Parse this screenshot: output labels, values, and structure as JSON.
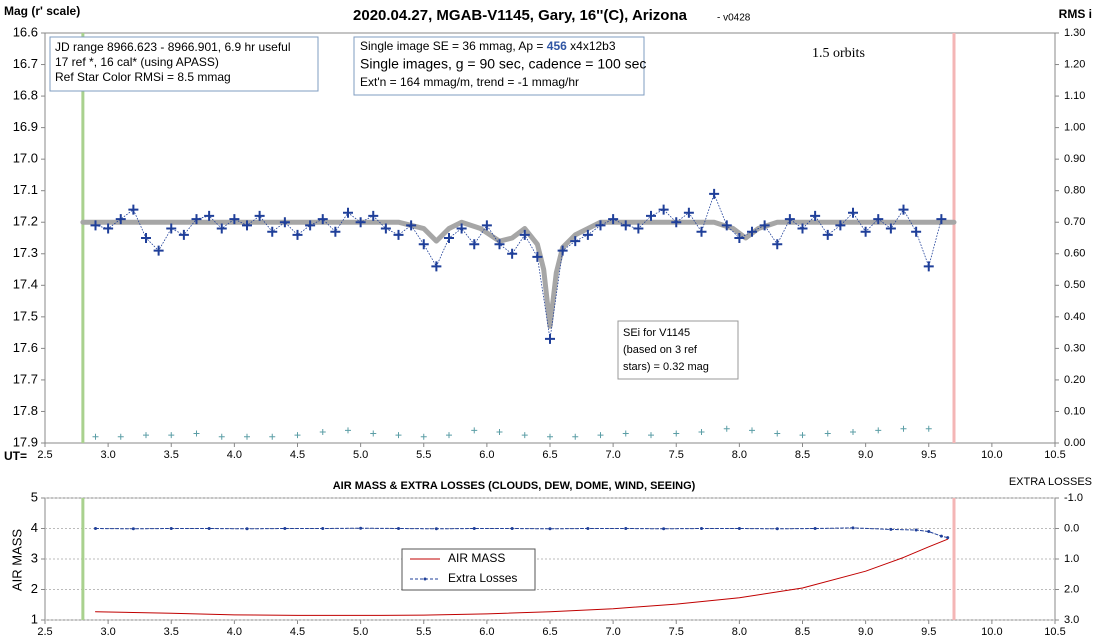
{
  "chart_data": [
    {
      "type": "line",
      "title": "2020.04.27, MGAB-V1145, Gary, 16''(C), Arizona",
      "subtitle": "- v0428",
      "y_label": "Mag (r' scale)",
      "y2_label": "RMS i",
      "x_label": "UT=",
      "xlim": [
        2.5,
        10.5
      ],
      "xticks": [
        2.5,
        {
          "value": 3,
          "label": "3.0"
        },
        3.5,
        {
          "value": 4,
          "label": "4.0"
        },
        4.5,
        {
          "value": 5,
          "label": "5.0"
        },
        5.5,
        {
          "value": 6,
          "label": "6.0"
        },
        6.5,
        {
          "value": 7,
          "label": "7.0"
        },
        7.5,
        {
          "value": 8,
          "label": "8.0"
        },
        8.5,
        {
          "value": 9,
          "label": "9.0"
        },
        9.5,
        {
          "value": 10,
          "label": "10.0"
        },
        10.5
      ],
      "ylim": [
        16.6,
        17.9
      ],
      "y_reversed": true,
      "yticks": [
        16.6,
        16.7,
        16.8,
        16.9,
        {
          "value": 17,
          "label": "17.0"
        },
        17.1,
        17.2,
        17.3,
        17.4,
        17.5,
        17.6,
        17.7,
        17.8,
        17.9
      ],
      "y2lim": [
        0,
        1.3
      ],
      "y2ticks": [
        {
          "value": 0,
          "label": "0.00"
        },
        {
          "value": 0.1,
          "label": "0.10"
        },
        {
          "value": 0.2,
          "label": "0.20"
        },
        {
          "value": 0.3,
          "label": "0.30"
        },
        {
          "value": 0.4,
          "label": "0.40"
        },
        {
          "value": 0.5,
          "label": "0.50"
        },
        {
          "value": 0.6,
          "label": "0.60"
        },
        {
          "value": 0.7,
          "label": "0.70"
        },
        {
          "value": 0.8,
          "label": "0.80"
        },
        {
          "value": 0.9,
          "label": "0.90"
        },
        {
          "value": 1,
          "label": "1.00"
        },
        {
          "value": 1.1,
          "label": "1.10"
        },
        {
          "value": 1.2,
          "label": "1.20"
        },
        {
          "value": 1.3,
          "label": "1.30"
        }
      ],
      "grid": false,
      "vlines": [
        {
          "x": 2.8,
          "color": "#a9d18e"
        },
        {
          "x": 9.7,
          "color": "#f4b6b6"
        }
      ],
      "series": [
        {
          "color": "#a6a6a6",
          "line": "thick",
          "marker": "none",
          "x": [
            2.8,
            5.3,
            5.5,
            5.6,
            5.7,
            5.8,
            5.95,
            6.1,
            6.2,
            6.3,
            6.4,
            6.45,
            6.5,
            6.55,
            6.6,
            6.7,
            6.9,
            7.8,
            7.95,
            8.05,
            8.15,
            8.3,
            9.7
          ],
          "values": [
            17.2,
            17.2,
            17.22,
            17.26,
            17.22,
            17.2,
            17.22,
            17.26,
            17.25,
            17.22,
            17.27,
            17.35,
            17.53,
            17.36,
            17.28,
            17.24,
            17.2,
            17.2,
            17.22,
            17.25,
            17.22,
            17.2,
            17.2
          ]
        },
        {
          "color": "#1f3f99",
          "line": "dotted",
          "marker": "plus",
          "x": [
            2.9,
            3.0,
            3.1,
            3.2,
            3.3,
            3.4,
            3.5,
            3.6,
            3.7,
            3.8,
            3.9,
            4.0,
            4.1,
            4.2,
            4.3,
            4.4,
            4.5,
            4.6,
            4.7,
            4.8,
            4.9,
            5.0,
            5.1,
            5.2,
            5.3,
            5.4,
            5.5,
            5.6,
            5.7,
            5.8,
            5.9,
            6.0,
            6.1,
            6.2,
            6.3,
            6.4,
            6.5,
            6.6,
            6.7,
            6.8,
            6.9,
            7.0,
            7.1,
            7.2,
            7.3,
            7.4,
            7.5,
            7.6,
            7.7,
            7.8,
            7.9,
            8.0,
            8.1,
            8.2,
            8.3,
            8.4,
            8.5,
            8.6,
            8.7,
            8.8,
            8.9,
            9.0,
            9.1,
            9.2,
            9.3,
            9.4,
            9.5,
            9.6
          ],
          "values": [
            17.21,
            17.22,
            17.19,
            17.16,
            17.25,
            17.29,
            17.22,
            17.24,
            17.19,
            17.18,
            17.22,
            17.19,
            17.21,
            17.18,
            17.23,
            17.2,
            17.24,
            17.21,
            17.19,
            17.23,
            17.17,
            17.2,
            17.18,
            17.22,
            17.24,
            17.21,
            17.27,
            17.34,
            17.25,
            17.22,
            17.27,
            17.21,
            17.27,
            17.3,
            17.24,
            17.31,
            17.57,
            17.29,
            17.26,
            17.24,
            17.21,
            17.19,
            17.21,
            17.22,
            17.18,
            17.16,
            17.2,
            17.17,
            17.23,
            17.11,
            17.21,
            17.25,
            17.23,
            17.21,
            17.27,
            17.19,
            17.22,
            17.18,
            17.24,
            17.21,
            17.17,
            17.23,
            17.19,
            17.22,
            17.16,
            17.23,
            17.34,
            17.19
          ]
        },
        {
          "color": "#5b9ea6",
          "line": "none",
          "marker": "plus",
          "axis": "y2",
          "x": [
            2.9,
            3.1,
            3.3,
            3.5,
            3.7,
            3.9,
            4.1,
            4.3,
            4.5,
            4.7,
            4.9,
            5.1,
            5.3,
            5.5,
            5.7,
            5.9,
            6.1,
            6.3,
            6.5,
            6.7,
            6.9,
            7.1,
            7.3,
            7.5,
            7.7,
            7.9,
            8.1,
            8.3,
            8.5,
            8.7,
            8.9,
            9.1,
            9.3,
            9.5
          ],
          "values": [
            0.02,
            0.02,
            0.025,
            0.025,
            0.03,
            0.02,
            0.02,
            0.02,
            0.025,
            0.035,
            0.04,
            0.03,
            0.025,
            0.02,
            0.025,
            0.04,
            0.035,
            0.025,
            0.02,
            0.02,
            0.025,
            0.03,
            0.025,
            0.03,
            0.035,
            0.045,
            0.04,
            0.03,
            0.025,
            0.03,
            0.035,
            0.04,
            0.045,
            0.045
          ]
        }
      ],
      "annotations": {
        "info_box": [
          "JD range 8966.623 - 8966.901, 6.9 hr useful",
          "17 ref *, 16 cal* (using APASS)",
          "Ref Star Color RMSi = 8.5 mmag"
        ],
        "image_box": {
          "line1": [
            "Single image SE = 36 mmag, Ap = ",
            "456",
            " x4x12b3"
          ],
          "line2": "Single images, g = 90 sec, cadence = 100 sec",
          "line3": "Ext'n = 164 mmag/m, trend = -1 mmag/hr"
        },
        "orbits": "1.5 orbits",
        "sei_box": [
          "SEi for V1145",
          "(based on 3 ref",
          "stars) = 0.32 mag"
        ]
      }
    },
    {
      "type": "line",
      "title": "AIR MASS & EXTRA LOSSES (CLOUDS, DEW, DOME, WIND, SEEING)",
      "y_label": "AIR MASS",
      "y2_label": "EXTRA LOSSES",
      "xlim": [
        2.5,
        10.5
      ],
      "xticks": [
        2.5,
        {
          "value": 3,
          "label": "3.0"
        },
        3.5,
        {
          "value": 4,
          "label": "4.0"
        },
        4.5,
        {
          "value": 5,
          "label": "5.0"
        },
        5.5,
        {
          "value": 6,
          "label": "6.0"
        },
        6.5,
        {
          "value": 7,
          "label": "7.0"
        },
        7.5,
        {
          "value": 8,
          "label": "8.0"
        },
        8.5,
        {
          "value": 9,
          "label": "9.0"
        },
        9.5,
        {
          "value": 10,
          "label": "10.0"
        },
        10.5
      ],
      "ylim": [
        1,
        5
      ],
      "yticks": [
        1,
        2,
        3,
        4,
        5
      ],
      "y2lim": [
        -1,
        3
      ],
      "y2_reversed": true,
      "y2ticks": [
        {
          "value": -1,
          "label": "-1.0"
        },
        {
          "value": 0,
          "label": "0.0"
        },
        {
          "value": 1,
          "label": "1.0"
        },
        {
          "value": 2,
          "label": "2.0"
        },
        {
          "value": 3,
          "label": "3.0"
        }
      ],
      "grid": true,
      "vlines": [
        {
          "x": 2.8,
          "color": "#a9d18e"
        },
        {
          "x": 9.7,
          "color": "#f4b6b6"
        }
      ],
      "series": [
        {
          "name": "AIR MASS",
          "color": "#c00000",
          "line": "solid",
          "marker": "none",
          "x": [
            2.9,
            3.5,
            4.0,
            4.5,
            5.0,
            5.5,
            6.0,
            6.5,
            7.0,
            7.5,
            8.0,
            8.5,
            9.0,
            9.3,
            9.5,
            9.65
          ],
          "values": [
            1.27,
            1.22,
            1.17,
            1.15,
            1.15,
            1.16,
            1.2,
            1.27,
            1.37,
            1.52,
            1.73,
            2.05,
            2.6,
            3.05,
            3.4,
            3.65
          ]
        },
        {
          "name": "Extra Losses",
          "color": "#1f3f99",
          "line": "dashed",
          "marker": "dot",
          "axis": "y2",
          "x": [
            2.9,
            3.2,
            3.5,
            3.8,
            4.1,
            4.4,
            4.7,
            5.0,
            5.3,
            5.6,
            5.9,
            6.2,
            6.5,
            6.8,
            7.1,
            7.4,
            7.7,
            8.0,
            8.3,
            8.6,
            8.9,
            9.2,
            9.4,
            9.5,
            9.6,
            9.65
          ],
          "values": [
            0,
            0.01,
            0,
            0,
            0.01,
            0,
            0,
            -0.01,
            0,
            0.01,
            0,
            0,
            0.01,
            0,
            0,
            0.01,
            0,
            0,
            0.01,
            0,
            -0.02,
            0.03,
            0.05,
            0.1,
            0.25,
            0.3
          ]
        }
      ]
    }
  ]
}
